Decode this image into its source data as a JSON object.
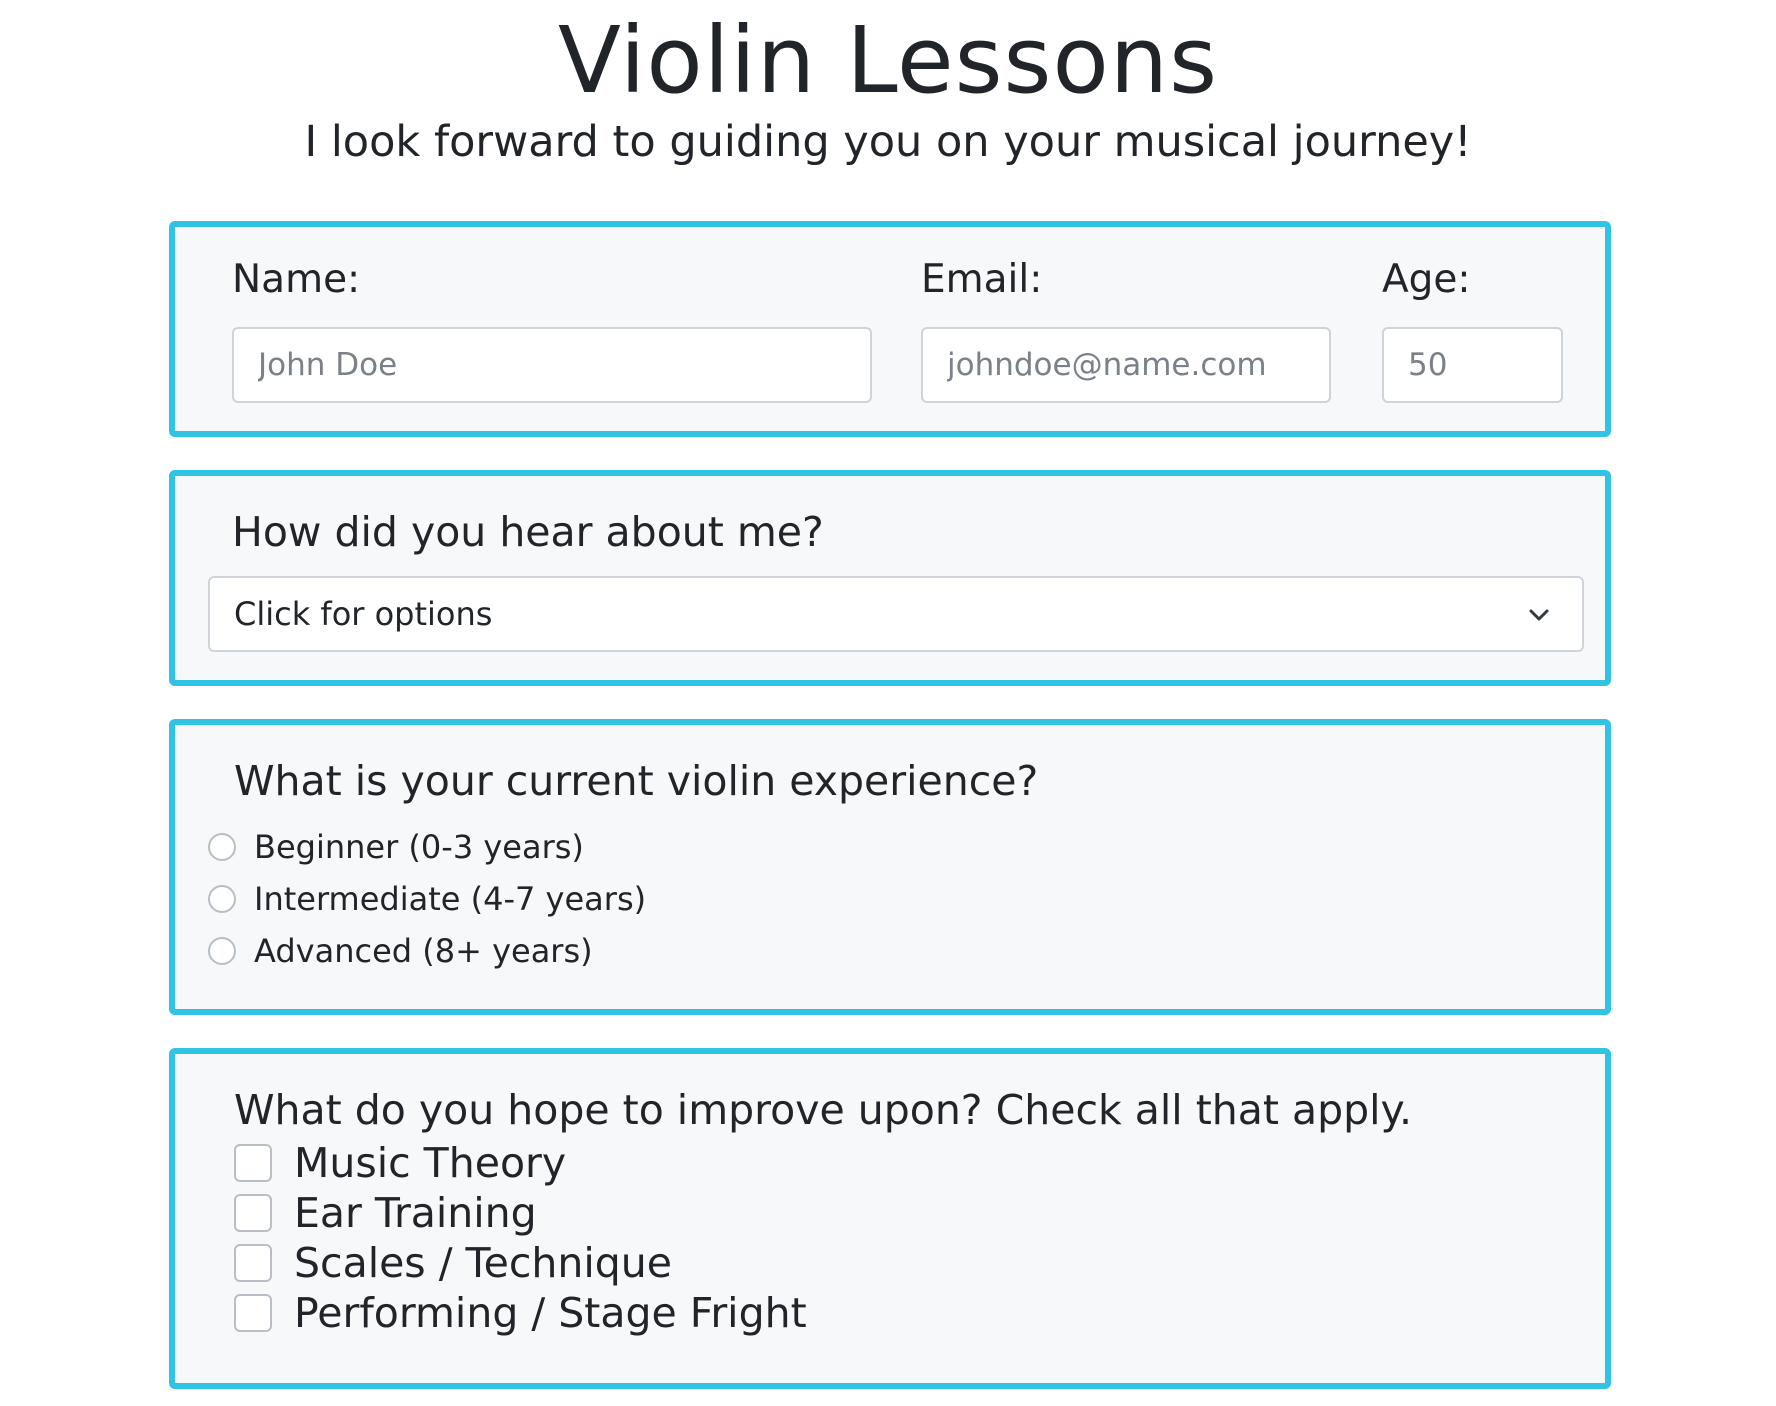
{
  "header": {
    "title": "Violin Lessons",
    "subtitle": "I look forward to guiding you on your musical journey!"
  },
  "contact": {
    "name_label": "Name:",
    "name_placeholder": "John Doe",
    "email_label": "Email:",
    "email_placeholder": "johndoe@name.com",
    "age_label": "Age:",
    "age_placeholder": "50"
  },
  "source": {
    "question": "How did you hear about me?",
    "select_value": "Click for options",
    "select_icon": "chevron-down-icon"
  },
  "experience": {
    "question": "What is your current violin experience?",
    "options": [
      "Beginner (0-3 years)",
      "Intermediate (4-7 years)",
      "Advanced (8+ years)"
    ]
  },
  "improve": {
    "question": "What do you hope to improve upon? Check all that apply.",
    "options": [
      "Music Theory",
      "Ear Training",
      "Scales / Technique",
      "Performing / Stage Fright"
    ]
  },
  "colors": {
    "card_border": "#31c3e3",
    "card_background": "#f7f8fa",
    "text": "#212529",
    "placeholder": "#7b8188"
  }
}
